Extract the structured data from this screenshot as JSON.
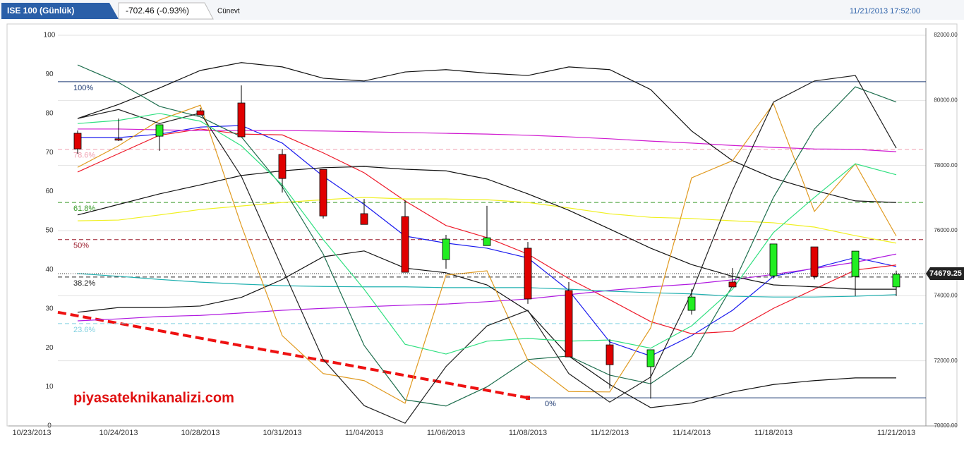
{
  "header": {
    "tab": "ISE 100 (Günlük)",
    "change": "-702.46 (-0.93%)",
    "user": "Cünevt",
    "timestamp": "11/21/2013 17:52:00"
  },
  "chart_data": {
    "type": "candlestick",
    "watermark": "piyasateknikanalizi.com",
    "start_label": "10/23/2013",
    "categories": [
      null,
      "10/24/2013",
      null,
      "10/28/2013",
      null,
      "10/31/2013",
      null,
      "11/04/2013",
      null,
      "11/06/2013",
      null,
      "11/08/2013",
      null,
      "11/12/2013",
      null,
      "11/14/2013",
      null,
      "11/18/2013",
      null,
      null,
      "11/21/2013"
    ],
    "open": [
      78990,
      78820,
      78900,
      79680,
      79920,
      78340,
      77880,
      76520,
      76430,
      75110,
      75540,
      75460,
      74160,
      72490,
      71820,
      73550,
      74420,
      74610,
      75500,
      74590,
      74270
    ],
    "close": [
      78510,
      78800,
      79250,
      79550,
      78880,
      77600,
      76450,
      76190,
      74720,
      75740,
      75780,
      73900,
      72120,
      71880,
      72340,
      73960,
      74270,
      75590,
      74590,
      75370,
      74660
    ],
    "high": [
      79075,
      79440,
      79250,
      79770,
      80460,
      78510,
      77880,
      76970,
      76930,
      75870,
      76760,
      75650,
      74420,
      72660,
      72340,
      74200,
      74850,
      75590,
      75500,
      75370,
      74770
    ],
    "low": [
      78360,
      78750,
      78450,
      79550,
      78880,
      77170,
      76370,
      76190,
      74720,
      74830,
      75540,
      73750,
      72120,
      71150,
      70840,
      73420,
      74270,
      74530,
      74500,
      73990,
      73990
    ],
    "up_color": "#22ee22",
    "down_color": "#e00000",
    "last_price": 74679.25,
    "ylim": [
      0,
      100
    ],
    "yticks": [
      0,
      10,
      20,
      30,
      40,
      50,
      60,
      70,
      80,
      90,
      100
    ],
    "y2lim": [
      70000,
      82000
    ],
    "y2ticks": [
      {
        "value": 70000,
        "label": "70000.00"
      },
      {
        "value": 72000,
        "label": "72000.00"
      },
      {
        "value": 74000,
        "label": "74000.00"
      },
      {
        "value": 76000,
        "label": "76000.00"
      },
      {
        "value": 78000,
        "label": "78000.00"
      },
      {
        "value": 80000,
        "label": "80000.00"
      },
      {
        "value": 82000,
        "label": "82000.00"
      }
    ],
    "series": [
      {
        "color": "#1a1aee",
        "values": [
          73.8,
          73.8,
          74.7,
          76.5,
          76.9,
          72.4,
          63.9,
          56.7,
          48.6,
          46.8,
          45.5,
          43.0,
          34.7,
          21.5,
          17.9,
          23.1,
          29.6,
          38.3,
          40.4,
          43.1,
          40.8
        ]
      },
      {
        "color": "#ee1a2a",
        "values": [
          65.0,
          69.7,
          74.4,
          76.0,
          74.7,
          74.5,
          69.9,
          64.8,
          57.6,
          51.3,
          48.2,
          44.0,
          37.7,
          32.3,
          26.7,
          23.6,
          24.2,
          30.1,
          35.0,
          39.9,
          41.2
        ]
      },
      {
        "color": "#d01ad0",
        "values": [
          76.0,
          76.0,
          75.8,
          75.6,
          75.6,
          75.6,
          75.5,
          75.3,
          75.1,
          74.9,
          74.7,
          74.4,
          74.0,
          73.5,
          72.9,
          72.4,
          71.8,
          71.3,
          70.9,
          70.8,
          70.2
        ]
      },
      {
        "color": "#b01ae0",
        "values": [
          26.9,
          27.4,
          28.0,
          28.3,
          28.9,
          29.6,
          30.1,
          30.5,
          30.9,
          31.2,
          31.8,
          32.5,
          33.6,
          34.7,
          35.6,
          36.3,
          37.4,
          38.8,
          40.3,
          41.9,
          44.0
        ]
      },
      {
        "color": "#f0f020",
        "values": [
          52.5,
          52.7,
          54.0,
          55.4,
          56.3,
          57.2,
          57.9,
          58.5,
          58.1,
          58.1,
          57.9,
          57.2,
          55.8,
          54.3,
          53.4,
          53.1,
          52.5,
          52.0,
          50.9,
          48.7,
          46.8
        ]
      },
      {
        "color": "#20b0b0",
        "values": [
          39.0,
          38.3,
          37.5,
          36.8,
          36.3,
          35.9,
          35.7,
          35.6,
          35.6,
          35.4,
          35.4,
          35.4,
          35.0,
          34.5,
          34.1,
          33.8,
          33.2,
          33.0,
          33.0,
          33.2,
          33.6
        ]
      },
      {
        "color": "#111111",
        "values": [
          78.7,
          82.3,
          86.5,
          91.0,
          93.0,
          91.9,
          89.0,
          88.3,
          90.6,
          91.2,
          90.3,
          89.7,
          91.9,
          91.2,
          86.1,
          75.5,
          67.9,
          63.4,
          60.3,
          57.6,
          57.2
        ]
      },
      {
        "color": "#111111",
        "values": [
          54.0,
          56.7,
          59.4,
          61.7,
          64.1,
          65.3,
          66.1,
          66.4,
          65.7,
          65.3,
          63.2,
          59.4,
          55.2,
          50.4,
          45.5,
          41.3,
          38.3,
          36.1,
          35.6,
          35.0,
          35.0
        ]
      },
      {
        "color": "#111111",
        "values": [
          29.1,
          30.3,
          30.3,
          30.7,
          32.9,
          37.5,
          43.3,
          44.8,
          40.4,
          39.2,
          36.1,
          29.4,
          17.9,
          10.6,
          4.7,
          5.9,
          8.7,
          10.6,
          11.6,
          12.3,
          12.3
        ]
      },
      {
        "color": "#1e6e4e",
        "values": [
          92.4,
          87.9,
          81.8,
          79.1,
          74.0,
          61.2,
          44.0,
          20.6,
          6.7,
          5.1,
          10.0,
          17.0,
          17.9,
          13.0,
          10.8,
          17.9,
          35.9,
          58.5,
          76.0,
          86.8,
          82.9
        ]
      },
      {
        "color": "#e09a20",
        "values": [
          66.2,
          71.7,
          78.3,
          82.1,
          51.3,
          23.1,
          13.4,
          11.6,
          5.8,
          38.6,
          39.7,
          16.8,
          8.8,
          8.7,
          25.1,
          63.5,
          67.9,
          82.5,
          54.9,
          67.1,
          48.6
        ]
      },
      {
        "color": "#222222",
        "values": [
          78.7,
          81.0,
          77.4,
          80.1,
          63.9,
          40.4,
          17.0,
          5.2,
          0.7,
          15.2,
          25.6,
          29.6,
          13.4,
          6.1,
          12.5,
          34.1,
          60.3,
          82.9,
          88.3,
          89.7,
          71.1
        ]
      },
      {
        "color": "#30e080",
        "values": [
          77.4,
          78.2,
          80.0,
          78.0,
          71.7,
          61.7,
          47.7,
          35.0,
          20.9,
          18.4,
          21.7,
          22.4,
          21.7,
          22.0,
          19.9,
          25.6,
          35.0,
          49.5,
          58.5,
          67.1,
          64.3
        ]
      }
    ],
    "fib_levels": [
      {
        "label": "100%",
        "value": 88.1,
        "color": "#1f3b73",
        "dashed": false
      },
      {
        "label": "78.6%",
        "value": 70.8,
        "color": "#f0a0b0",
        "dashed": true
      },
      {
        "label": "61.8%",
        "value": 57.2,
        "color": "#3a9a2a",
        "dashed": true
      },
      {
        "label": "50%",
        "value": 47.7,
        "color": "#9a1a2a",
        "dashed": true
      },
      {
        "label": "38.2%",
        "value": 38.1,
        "color": "#222222",
        "dashed": true
      },
      {
        "label": "23.6%",
        "value": 26.2,
        "color": "#80d0e0",
        "dashed": true
      },
      {
        "label": "0%",
        "value": 7.2,
        "color": "#1f3b73",
        "dashed": false
      }
    ],
    "trendline": {
      "color": "#ee1111",
      "values": [
        29.1,
        7.2
      ]
    }
  }
}
